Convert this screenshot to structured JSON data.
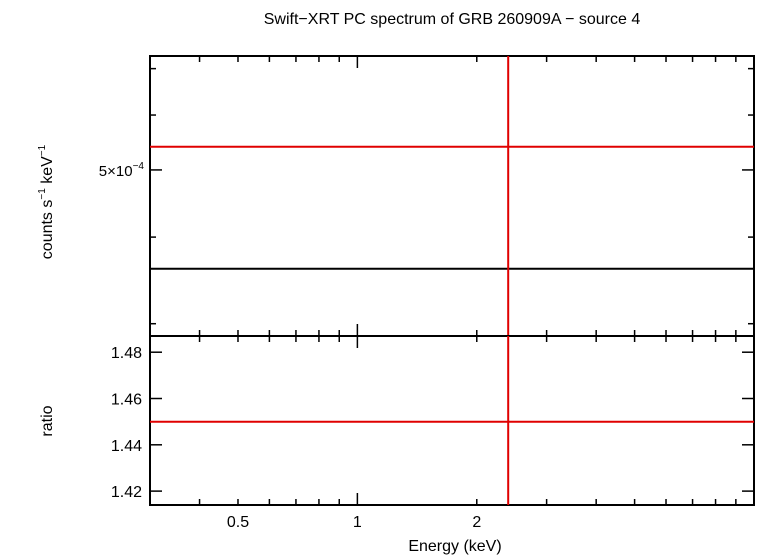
{
  "chart_data": [
    {
      "panel": "spectrum",
      "type": "line",
      "title": "Swift−XRT PC spectrum of GRB 260909A − source 4",
      "ylabel_main": "counts s",
      "ylabel_exp1": "−1",
      "ylabel_mid": " keV",
      "ylabel_exp2": "−1",
      "x_scale": "log",
      "y_scale": "log",
      "xlim": [
        0.3,
        10
      ],
      "ylim": [
        0.000288,
        0.00073
      ],
      "yticks_major": [
        {
          "value": 0.0005,
          "base": "5×10",
          "exp": "−4"
        }
      ],
      "yticks_minor": [
        0.0003,
        0.0004,
        0.0006,
        0.0007
      ],
      "series": [
        {
          "color": "#000000",
          "x": [
            0.3,
            10
          ],
          "y": [
            0.00036,
            0.00036
          ]
        },
        {
          "color": "#e00000",
          "x": [
            0.3,
            10
          ],
          "y": [
            0.00054,
            0.00054
          ]
        },
        {
          "color": "#e00000",
          "x": [
            2.4,
            2.4
          ],
          "y": [
            0.000288,
            0.00073
          ]
        }
      ]
    },
    {
      "panel": "ratio",
      "type": "line",
      "ylabel": "ratio",
      "xlabel": "Energy (keV)",
      "x_scale": "log",
      "xlim": [
        0.3,
        10
      ],
      "ylim": [
        1.414,
        1.487
      ],
      "xticks": [
        {
          "value": 0.5,
          "label": "0.5"
        },
        {
          "value": 1,
          "label": "1"
        },
        {
          "value": 2,
          "label": "2"
        }
      ],
      "yticks": [
        {
          "value": 1.42,
          "label": "1.42"
        },
        {
          "value": 1.44,
          "label": "1.44"
        },
        {
          "value": 1.46,
          "label": "1.46"
        },
        {
          "value": 1.48,
          "label": "1.48"
        }
      ],
      "series": [
        {
          "color": "#e00000",
          "x": [
            0.3,
            10
          ],
          "y": [
            1.45,
            1.45
          ]
        },
        {
          "color": "#e00000",
          "x": [
            2.4,
            2.4
          ],
          "y": [
            1.414,
            1.487
          ]
        }
      ]
    }
  ]
}
